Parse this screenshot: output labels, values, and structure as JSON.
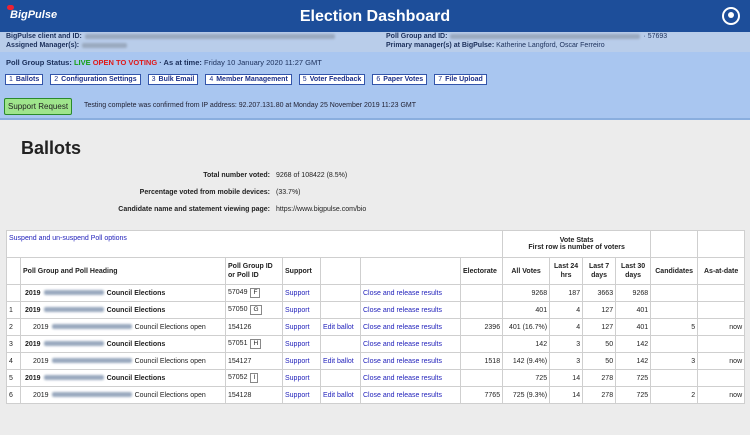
{
  "header": {
    "logo": "BigPulse",
    "title": "Election Dashboard"
  },
  "info": {
    "client_label": "BigPulse client and ID:",
    "manager_label": "Assigned Manager(s):",
    "poll_group_label": "Poll Group and ID:",
    "poll_group_id": "· 57693",
    "primary_label": "Primary manager(s) at BigPulse:",
    "primary_value": "Katherine Langford, Oscar Ferreiro"
  },
  "status": {
    "label": "Poll Group Status:",
    "live": "LIVE",
    "open": "OPEN TO VOTING",
    "time_label": "· As at time:",
    "time": "Friday 10 January 2020 11:27 GMT"
  },
  "tabs": [
    {
      "num": "1",
      "label": "Ballots"
    },
    {
      "num": "2",
      "label": "Configuration Settings"
    },
    {
      "num": "3",
      "label": "Bulk Email"
    },
    {
      "num": "4",
      "label": "Member Management"
    },
    {
      "num": "5",
      "label": "Voter Feedback"
    },
    {
      "num": "6",
      "label": "Paper Votes"
    },
    {
      "num": "7",
      "label": "File Upload"
    }
  ],
  "support_button": "Support Request",
  "testing_note": "Testing complete was confirmed from IP address: 92.207.131.80 at Monday 25 November 2019 11:23 GMT",
  "page": {
    "heading": "Ballots",
    "summary": [
      {
        "label": "Total number voted:",
        "value": "9268 of 108422 (8.5%)"
      },
      {
        "label": "Percentage voted from mobile devices:",
        "value": "(33.7%)"
      },
      {
        "label": "Candidate name and statement viewing page:",
        "value": "https://www.bigpulse.com/bio"
      }
    ]
  },
  "table": {
    "suspend_link": "Suspend and un-suspend Poll options",
    "vote_stats_title": "Vote Stats",
    "vote_stats_note": "First row is number of voters",
    "columns": {
      "heading": "Poll Group and Poll Heading",
      "id": "Poll Group ID or Poll ID",
      "support": "Support",
      "electorate": "Electorate",
      "all": "All Votes",
      "d1": "Last 24 hrs",
      "d7": "Last 7 days",
      "d30": "Last 30 days",
      "candidates": "Candidates",
      "asat": "As-at-date"
    },
    "rows": [
      {
        "year": "2019",
        "heading": "Council Elections",
        "bold": true,
        "id": "57049",
        "badge": "F",
        "support": "Support",
        "close": "Close and release results",
        "all": "9268",
        "d1": "187",
        "d7": "3663",
        "d30": "9268"
      },
      {
        "num": "1",
        "year": "2019",
        "heading": "Council Elections",
        "bold": true,
        "id": "57050",
        "badge": "G",
        "support": "Support",
        "close": "Close and release results",
        "all": "401",
        "d1": "4",
        "d7": "127",
        "d30": "401"
      },
      {
        "num": "2",
        "year": "2019",
        "heading": "Council Elections open",
        "bold": false,
        "id": "154126",
        "support": "Support",
        "edit": "Edit ballot",
        "close": "Close and release results",
        "electorate": "2396",
        "all": "401 (16.7%)",
        "d1": "4",
        "d7": "127",
        "d30": "401",
        "candidates": "5",
        "asat": "now"
      },
      {
        "num": "3",
        "year": "2019",
        "heading": "Council Elections",
        "bold": true,
        "id": "57051",
        "badge": "H",
        "support": "Support",
        "close": "Close and release results",
        "all": "142",
        "d1": "3",
        "d7": "50",
        "d30": "142"
      },
      {
        "num": "4",
        "year": "2019",
        "heading": "Council Elections open",
        "bold": false,
        "id": "154127",
        "support": "Support",
        "edit": "Edit ballot",
        "close": "Close and release results",
        "electorate": "1518",
        "all": "142 (9.4%)",
        "d1": "3",
        "d7": "50",
        "d30": "142",
        "candidates": "3",
        "asat": "now"
      },
      {
        "num": "5",
        "year": "2019",
        "heading": "Council Elections",
        "bold": true,
        "id": "57052",
        "badge": "I",
        "support": "Support",
        "close": "Close and release results",
        "all": "725",
        "d1": "14",
        "d7": "278",
        "d30": "725"
      },
      {
        "num": "6",
        "year": "2019",
        "heading": "Council Elections open",
        "bold": false,
        "id": "154128",
        "support": "Support",
        "edit": "Edit ballot",
        "close": "Close and release results",
        "electorate": "7765",
        "all": "725 (9.3%)",
        "d1": "14",
        "d7": "278",
        "d30": "725",
        "candidates": "2",
        "asat": "now"
      }
    ]
  }
}
